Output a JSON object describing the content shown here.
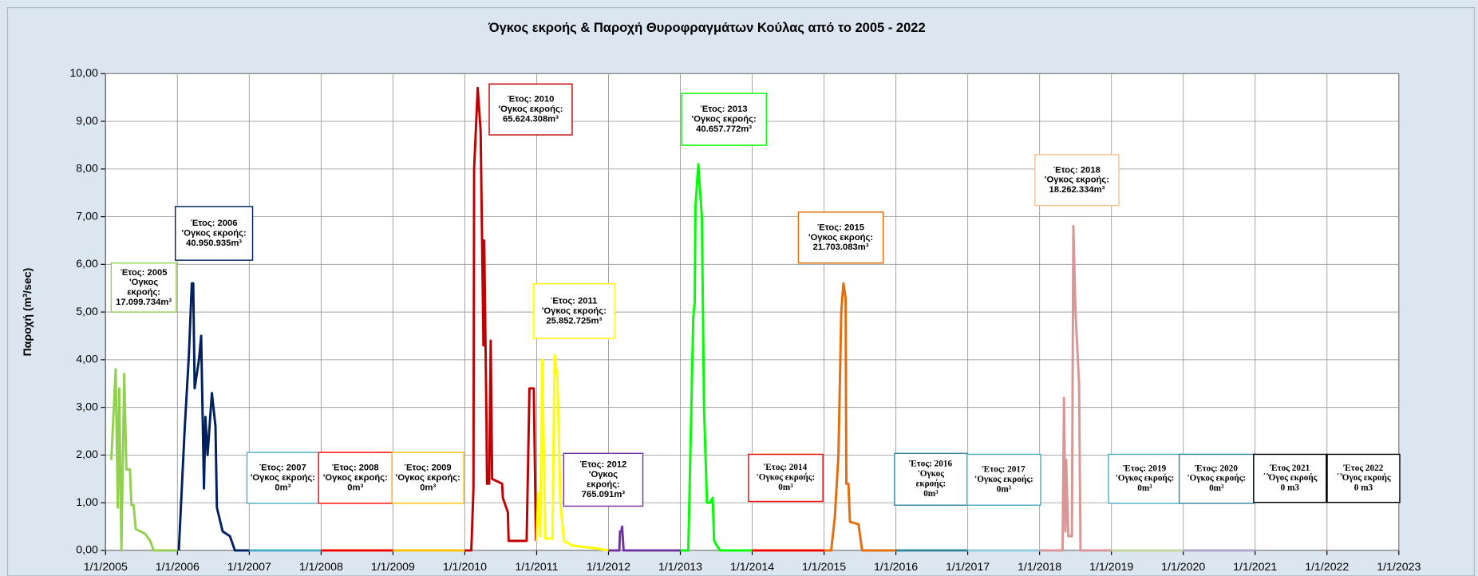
{
  "chart_data": {
    "type": "line",
    "title": "Όγκος εκροής & Παροχή Θυροφραγμάτων Κούλας από το 2005 - 2022",
    "y_label": "Παροχή (m³/sec)",
    "xlim": [
      2005,
      2023
    ],
    "xticks": [
      {
        "value": 2005,
        "label": "1/1/2005"
      },
      {
        "value": 2006,
        "label": "1/1/2006"
      },
      {
        "value": 2007,
        "label": "1/1/2007"
      },
      {
        "value": 2008,
        "label": "1/1/2008"
      },
      {
        "value": 2009,
        "label": "1/1/2009"
      },
      {
        "value": 2010,
        "label": "1/1/2010"
      },
      {
        "value": 2011,
        "label": "1/1/2011"
      },
      {
        "value": 2012,
        "label": "1/1/2012"
      },
      {
        "value": 2013,
        "label": "1/1/2013"
      },
      {
        "value": 2014,
        "label": "1/1/2014"
      },
      {
        "value": 2015,
        "label": "1/1/2015"
      },
      {
        "value": 2016,
        "label": "1/1/2016"
      },
      {
        "value": 2017,
        "label": "1/1/2017"
      },
      {
        "value": 2018,
        "label": "1/1/2018"
      },
      {
        "value": 2019,
        "label": "1/1/2019"
      },
      {
        "value": 2020,
        "label": "1/1/2020"
      },
      {
        "value": 2021,
        "label": "1/1/2021"
      },
      {
        "value": 2022,
        "label": "1/1/2022"
      },
      {
        "value": 2023,
        "label": "1/1/2023"
      }
    ],
    "ylim": [
      0,
      10
    ],
    "yticks": [
      {
        "value": 0,
        "label": "0,00"
      },
      {
        "value": 1,
        "label": "1,00"
      },
      {
        "value": 2,
        "label": "2,00"
      },
      {
        "value": 3,
        "label": "3,00"
      },
      {
        "value": 4,
        "label": "4,00"
      },
      {
        "value": 5,
        "label": "5,00"
      },
      {
        "value": 6,
        "label": "6,00"
      },
      {
        "value": 7,
        "label": "7,00"
      },
      {
        "value": 8,
        "label": "8,00"
      },
      {
        "value": 9,
        "label": "9,00"
      },
      {
        "value": 10,
        "label": "10,00"
      }
    ],
    "grid": true,
    "series": [
      {
        "color": "#92d050",
        "x": [
          2005.08,
          2005.14,
          2005.17,
          2005.19,
          2005.22,
          2005.26,
          2005.29,
          2005.34,
          2005.36,
          2005.39,
          2005.42,
          2005.55,
          2005.62,
          2005.67,
          2006.0
        ],
        "values": [
          1.9,
          3.8,
          0.9,
          3.4,
          0,
          3.7,
          1.7,
          1.7,
          0.95,
          0.95,
          0.45,
          0.35,
          0.2,
          0,
          0
        ]
      },
      {
        "color": "#002060",
        "x": [
          2006.02,
          2006.1,
          2006.16,
          2006.2,
          2006.22,
          2006.24,
          2006.3,
          2006.33,
          2006.37,
          2006.39,
          2006.42,
          2006.48,
          2006.53,
          2006.55,
          2006.63,
          2006.73,
          2006.8,
          2007.0
        ],
        "values": [
          0,
          2.5,
          4.1,
          5.6,
          5.6,
          3.4,
          4.0,
          4.5,
          1.3,
          2.8,
          2.0,
          3.3,
          2.6,
          0.9,
          0.4,
          0.3,
          0,
          0
        ]
      },
      {
        "color": "#4bacc6",
        "x": [
          2007.0,
          2008.0
        ],
        "values": [
          0,
          0
        ]
      },
      {
        "color": "#ff0000",
        "x": [
          2008.0,
          2009.0
        ],
        "values": [
          0,
          0
        ]
      },
      {
        "color": "#ffc000",
        "x": [
          2009.0,
          2010.0
        ],
        "values": [
          0,
          0
        ]
      },
      {
        "color": "#c00000",
        "x": [
          2010.0,
          2010.09,
          2010.12,
          2010.13,
          2010.18,
          2010.22,
          2010.26,
          2010.27,
          2010.3,
          2010.31,
          2010.34,
          2010.36,
          2010.38,
          2010.52,
          2010.53,
          2010.6,
          2010.61,
          2010.86,
          2010.9,
          2010.96,
          2010.99
        ],
        "values": [
          0,
          0,
          1.3,
          8.0,
          9.7,
          8.8,
          4.3,
          6.5,
          2.9,
          1.4,
          1.4,
          4.4,
          1.5,
          1.4,
          1.1,
          0.8,
          0.2,
          0.2,
          3.4,
          3.4,
          0.2
        ]
      },
      {
        "color": "#ffff00",
        "x": [
          2011.0,
          2011.02,
          2011.05,
          2011.08,
          2011.12,
          2011.22,
          2011.25,
          2011.29,
          2011.33,
          2011.38,
          2011.5,
          2011.8,
          2012.0
        ],
        "values": [
          0.2,
          1.2,
          0.3,
          4.0,
          0.25,
          0.25,
          4.1,
          3.6,
          1.0,
          0.2,
          0.1,
          0.05,
          0
        ]
      },
      {
        "color": "#7030a0",
        "x": [
          2012.0,
          2012.15,
          2012.16,
          2012.18,
          2012.19,
          2012.21,
          2013.0
        ],
        "values": [
          0,
          0,
          0.4,
          0.4,
          0.5,
          0,
          0
        ]
      },
      {
        "color": "#00ff00",
        "x": [
          2013.0,
          2013.11,
          2013.18,
          2013.2,
          2013.21,
          2013.25,
          2013.3,
          2013.33,
          2013.37,
          2013.41,
          2013.45,
          2013.47,
          2013.55,
          2014.0
        ],
        "values": [
          0,
          0,
          4.9,
          5.2,
          7.2,
          8.1,
          7.0,
          3.0,
          1.0,
          1.0,
          1.1,
          0.2,
          0,
          0
        ]
      },
      {
        "color": "#ff0000",
        "x": [
          2014.0,
          2015.0
        ],
        "values": [
          0,
          0
        ]
      },
      {
        "color": "#e46c0a",
        "x": [
          2015.0,
          2015.1,
          2015.15,
          2015.2,
          2015.24,
          2015.27,
          2015.3,
          2015.31,
          2015.34,
          2015.36,
          2015.48,
          2015.53,
          2016.0
        ],
        "values": [
          0,
          0,
          0.7,
          2.0,
          5.0,
          5.6,
          5.3,
          1.4,
          1.4,
          0.6,
          0.55,
          0,
          0
        ]
      },
      {
        "color": "#31859c",
        "x": [
          2016.0,
          2017.0
        ],
        "values": [
          0,
          0
        ]
      },
      {
        "color": "#93cddd",
        "x": [
          2017.0,
          2018.0
        ],
        "values": [
          0,
          0
        ]
      },
      {
        "color": "#d99694",
        "x": [
          2018.0,
          2018.32,
          2018.34,
          2018.36,
          2018.37,
          2018.4,
          2018.45,
          2018.47,
          2018.5,
          2018.55,
          2018.57,
          2019.0
        ],
        "values": [
          0,
          0,
          3.2,
          0.4,
          1.9,
          0.3,
          0.3,
          6.8,
          5.0,
          3.5,
          0,
          0
        ]
      },
      {
        "color": "#c3d69b",
        "x": [
          2019.0,
          2020.0
        ],
        "values": [
          0,
          0
        ]
      },
      {
        "color": "#b3a2c7",
        "x": [
          2020.0,
          2021.0
        ],
        "values": [
          0,
          0
        ]
      }
    ],
    "annotations": [
      {
        "color": "#92d050",
        "lines": [
          "Έτος: 2005",
          "'Ογκος",
          "εκροής:",
          "17.099.734m³"
        ]
      },
      {
        "color": "#002060",
        "lines": [
          "Έτος: 2006",
          "'Ογκος εκροής:",
          "40.950.935m³"
        ]
      },
      {
        "color": "#4bacc6",
        "lines": [
          "Έτος: 2007",
          "'Ογκος εκροής:",
          "0m³"
        ]
      },
      {
        "color": "#ff0000",
        "lines": [
          "Έτος: 2008",
          "'Ογκος εκροής:",
          "0m³"
        ]
      },
      {
        "color": "#ffc000",
        "lines": [
          "Έτος: 2009",
          "'Ογκος εκροής:",
          "0m³"
        ]
      },
      {
        "color": "#c00000",
        "lines": [
          "Έτος: 2010",
          "'Ογκος εκροής:",
          "65.624.308m³"
        ]
      },
      {
        "color": "#ffff00",
        "lines": [
          "Έτος: 2011",
          "'Ογκος εκροής:",
          "25.852.725m³"
        ]
      },
      {
        "color": "#7030a0",
        "lines": [
          "Έτος: 2012",
          "'Ογκος",
          "εκροής:",
          "765.091m³"
        ]
      },
      {
        "color": "#00ff00",
        "lines": [
          "Έτος: 2013",
          "'Ογκος εκροής:",
          "40.657.772m³"
        ]
      },
      {
        "color": "#ff0000",
        "lines": [
          "Έτος: 2014",
          "'Ογκος εκροής:",
          "0m³"
        ]
      },
      {
        "color": "#e46c0a",
        "lines": [
          "Έτος: 2015",
          "'Ογκος εκροής:",
          "21.703.083m³"
        ]
      },
      {
        "color": "#31859c",
        "lines": [
          "Έτος: 2016",
          "'Ογκος",
          "εκροής:",
          "0m³"
        ]
      },
      {
        "color": "#4bacc6",
        "lines": [
          "Έτος: 2017",
          "'Ογκος εκροής:",
          "0m³"
        ]
      },
      {
        "color": "#fac090",
        "lines": [
          "Έτος: 2018",
          "'Ογκος εκροής:",
          "18.262.334m³"
        ]
      },
      {
        "color": "#4bacc6",
        "lines": [
          "Έτος: 2019",
          "'Ογκος εκροής:",
          "0m³"
        ]
      },
      {
        "color": "#31859c",
        "lines": [
          "Έτος: 2020",
          "'Ογκος εκροής:",
          "0m³"
        ]
      },
      {
        "color": "#000000",
        "lines": [
          "Έτος 2021",
          "΄΄Όγος εκροής",
          "0 m3"
        ]
      },
      {
        "color": "#000000",
        "lines": [
          "Έτος 2022",
          "΄΄Όγος εκροής",
          "0 m3"
        ]
      }
    ]
  }
}
